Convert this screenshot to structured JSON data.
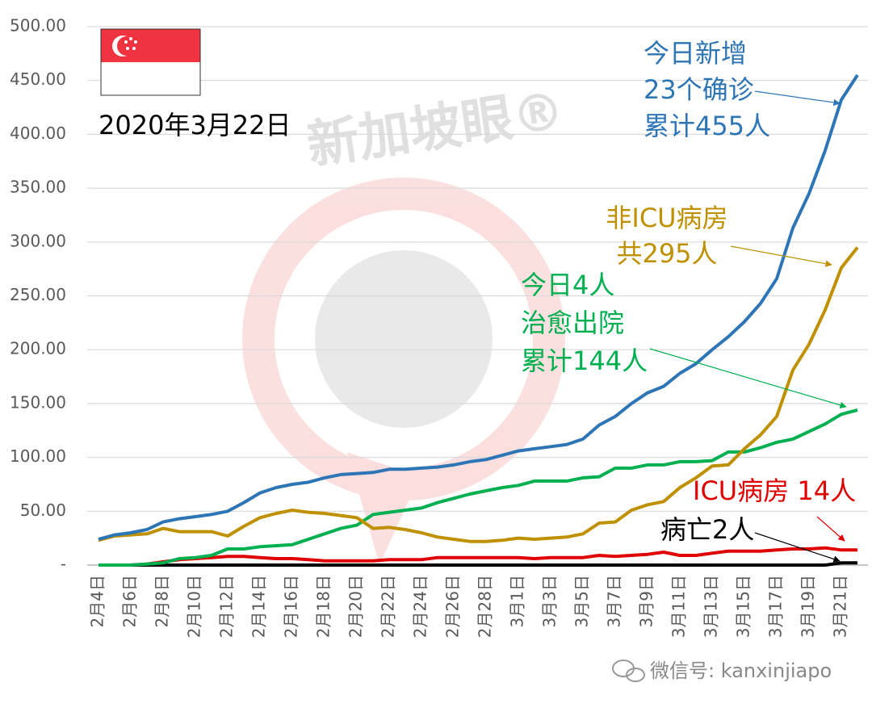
{
  "chart_data": {
    "type": "line",
    "date_label": "2020年3月22日",
    "watermark": "新加坡眼®",
    "footer": "微信号: kanxinjiapo",
    "categories": [
      "2月4日",
      null,
      "2月6日",
      null,
      "2月8日",
      null,
      "2月10日",
      null,
      "2月12日",
      null,
      "2月14日",
      null,
      "2月16日",
      null,
      "2月18日",
      null,
      "2月20日",
      null,
      "2月22日",
      null,
      "2月24日",
      null,
      "2月26日",
      null,
      "2月28日",
      null,
      "3月1日",
      null,
      "3月3日",
      null,
      "3月5日",
      null,
      "3月7日",
      null,
      "3月9日",
      null,
      "3月11日",
      null,
      "3月13日",
      null,
      "3月15日",
      null,
      "3月17日",
      null,
      "3月19日",
      null,
      "3月21日",
      null
    ],
    "series": [
      {
        "color": "#000000",
        "values": [
          0,
          0,
          0,
          0,
          0,
          0,
          0,
          0,
          0,
          0,
          0,
          0,
          0,
          0,
          0,
          0,
          0,
          0,
          0,
          0,
          0,
          0,
          0,
          0,
          0,
          0,
          0,
          0,
          0,
          0,
          0,
          0,
          0,
          0,
          0,
          0,
          0,
          0,
          0,
          0,
          0,
          0,
          0,
          0,
          0,
          0,
          2,
          2
        ]
      },
      {
        "color": "#e00000",
        "values": [
          0,
          0,
          0,
          1,
          3,
          5,
          6,
          7,
          8,
          8,
          7,
          6,
          6,
          5,
          4,
          4,
          4,
          4,
          5,
          5,
          5,
          7,
          7,
          7,
          7,
          7,
          7,
          6,
          7,
          7,
          7,
          9,
          8,
          9,
          10,
          12,
          9,
          9,
          11,
          13,
          13,
          13,
          14,
          15,
          15,
          16,
          14,
          14
        ]
      },
      {
        "color": "#00b050",
        "values": [
          0,
          0,
          0,
          1,
          2,
          6,
          7,
          9,
          15,
          15,
          17,
          18,
          19,
          24,
          29,
          34,
          37,
          47,
          49,
          51,
          53,
          58,
          62,
          66,
          69,
          72,
          74,
          78,
          78,
          78,
          81,
          82,
          90,
          90,
          93,
          93,
          96,
          96,
          97,
          105,
          105,
          109,
          114,
          117,
          124,
          131,
          140,
          144
        ]
      },
      {
        "color": "#bf9000",
        "values": [
          23,
          27,
          28,
          29,
          34,
          31,
          31,
          31,
          27,
          36,
          44,
          48,
          51,
          49,
          48,
          46,
          44,
          34,
          35,
          33,
          30,
          26,
          24,
          22,
          22,
          23,
          25,
          24,
          25,
          26,
          29,
          39,
          40,
          51,
          56,
          59,
          72,
          81,
          92,
          93,
          108,
          121,
          138,
          181,
          205,
          237,
          276,
          295
        ]
      },
      {
        "color": "#2e75b6",
        "values": [
          24,
          28,
          30,
          33,
          40,
          43,
          45,
          47,
          50,
          58,
          67,
          72,
          75,
          77,
          81,
          84,
          85,
          86,
          89,
          89,
          90,
          91,
          93,
          96,
          98,
          102,
          106,
          108,
          110,
          112,
          117,
          130,
          138,
          150,
          160,
          166,
          178,
          187,
          200,
          212,
          226,
          243,
          266,
          313,
          345,
          385,
          432,
          455
        ]
      }
    ],
    "ylim": [
      0,
      500
    ],
    "yticks": [
      {
        "value": 0,
        "label": "-"
      },
      {
        "value": 50,
        "label": "50.00"
      },
      {
        "value": 100,
        "label": "100.00"
      },
      {
        "value": 150,
        "label": "150.00"
      },
      {
        "value": 200,
        "label": "200.00"
      },
      {
        "value": 250,
        "label": "250.00"
      },
      {
        "value": 300,
        "label": "300.00"
      },
      {
        "value": 350,
        "label": "350.00"
      },
      {
        "value": 400,
        "label": "400.00"
      },
      {
        "value": 450,
        "label": "450.00"
      },
      {
        "value": 500,
        "label": "500.00"
      }
    ],
    "grid": true,
    "annotations": [
      {
        "lines": [
          "今日新增",
          "23个确诊",
          "累计455人"
        ],
        "color": "#2e75b6"
      },
      {
        "lines": [
          "非ICU病房",
          "共295人"
        ],
        "color": "#bf9000"
      },
      {
        "lines": [
          "今日4人",
          "治愈出院",
          "累计144人"
        ],
        "color": "#00b050"
      },
      {
        "lines": [
          "ICU病房 14人"
        ],
        "color": "#e00000"
      },
      {
        "lines": [
          "病亡2人"
        ],
        "color": "#000000"
      }
    ]
  }
}
